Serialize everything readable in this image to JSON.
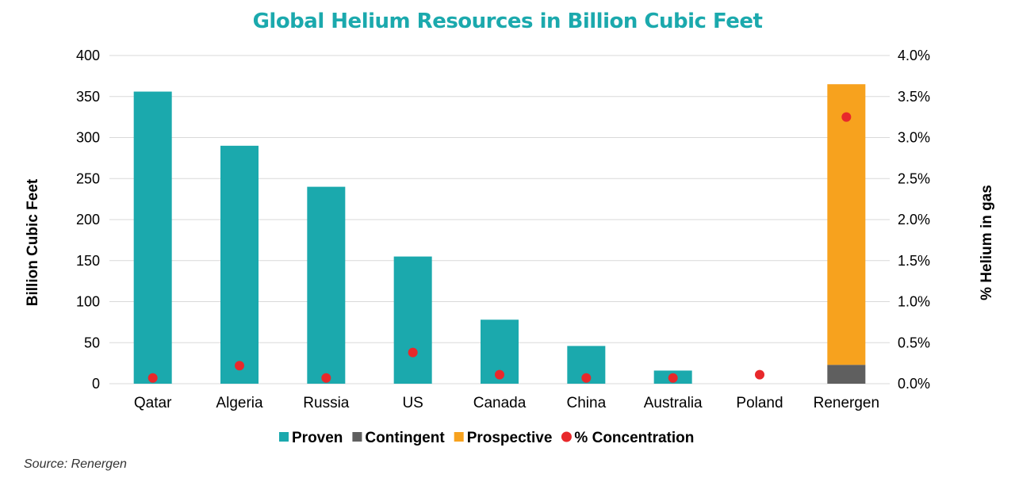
{
  "chart_data": {
    "type": "bar",
    "title": "Global Helium Resources in Billion Cubic Feet",
    "categories": [
      "Qatar",
      "Algeria",
      "Russia",
      "US",
      "Canada",
      "China",
      "Australia",
      "Poland",
      "Renergen"
    ],
    "series": [
      {
        "name": "Proven",
        "kind": "bar",
        "color": "#1BA9AD",
        "values": [
          356,
          290,
          240,
          155,
          78,
          46,
          16,
          0,
          0
        ]
      },
      {
        "name": "Contingent",
        "kind": "bar",
        "color": "#5F5F5F",
        "values": [
          0,
          0,
          0,
          0,
          0,
          0,
          0,
          0,
          23
        ]
      },
      {
        "name": "Prospective",
        "kind": "bar",
        "color": "#F7A21E",
        "values": [
          0,
          0,
          0,
          0,
          0,
          0,
          0,
          0,
          342
        ]
      },
      {
        "name": "% Concentration",
        "kind": "scatter",
        "axis": "right",
        "color": "#E8282B",
        "values": [
          0.07,
          0.22,
          0.07,
          0.38,
          0.11,
          0.07,
          0.07,
          0.11,
          3.25
        ]
      }
    ],
    "ylabel": "Billion Cubic Feet",
    "ylim": [
      0,
      400
    ],
    "yticks": [
      "0",
      "50",
      "100",
      "150",
      "200",
      "250",
      "300",
      "350",
      "400"
    ],
    "y2label": "% Helium in gas",
    "y2lim": [
      0,
      4
    ],
    "y2ticks": [
      "0.0%",
      "0.5%",
      "1.0%",
      "1.5%",
      "2.0%",
      "2.5%",
      "3.0%",
      "3.5%",
      "4.0%"
    ],
    "grid": true,
    "legend": "bottom"
  },
  "title_color": "#1BA9AD",
  "source": "Source: Renergen"
}
